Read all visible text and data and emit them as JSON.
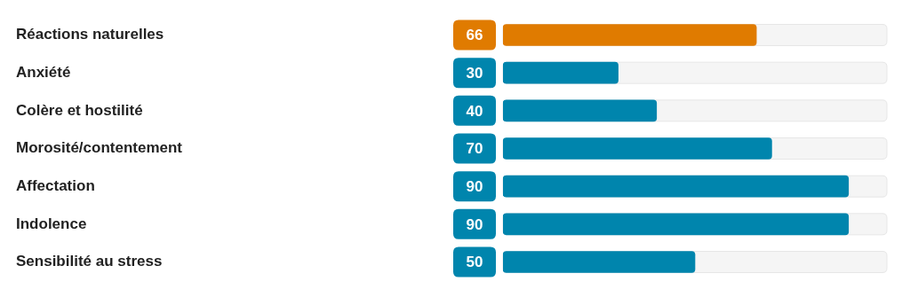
{
  "chart_data": {
    "type": "bar",
    "orientation": "horizontal",
    "categories": [
      "Réactions naturelles",
      "Anxiété",
      "Colère et hostilité",
      "Morosité/contentement",
      "Affectation",
      "Indolence",
      "Sensibilité au stress"
    ],
    "values": [
      66,
      30,
      40,
      70,
      90,
      90,
      50
    ],
    "colors": [
      "#e07b00",
      "#0085ad",
      "#0085ad",
      "#0085ad",
      "#0085ad",
      "#0085ad",
      "#0085ad"
    ],
    "xlim": [
      0,
      100
    ],
    "data_labels": true,
    "tick_labels": "y"
  }
}
